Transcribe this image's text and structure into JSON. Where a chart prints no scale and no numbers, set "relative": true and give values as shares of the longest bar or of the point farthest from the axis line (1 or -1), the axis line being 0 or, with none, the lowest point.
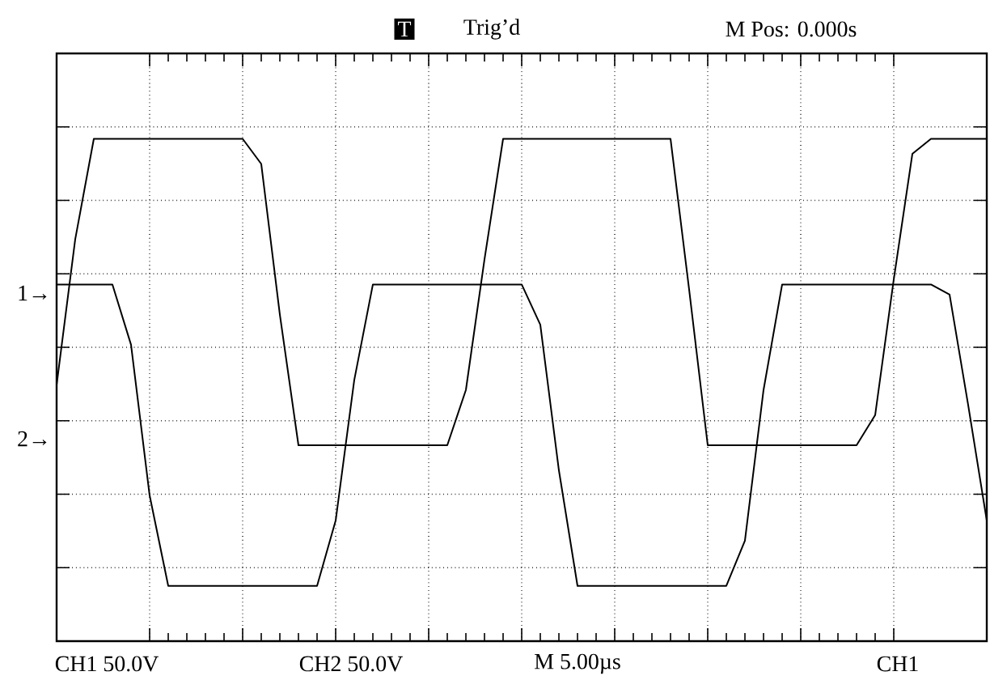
{
  "chart_data": {
    "type": "line",
    "relative": true,
    "annotations": [
      "Trig’d",
      "M Pos: 0.000s",
      "CH1  50.0V",
      "CH2  50.0V",
      "M 5.00µs",
      "CH1",
      "1→",
      "2→",
      "T"
    ],
    "categories": [
      null,
      null,
      null,
      null,
      null,
      null,
      null,
      null,
      null,
      null,
      null,
      null,
      null,
      null,
      null,
      null,
      null,
      null,
      null,
      null,
      null,
      null,
      null,
      null,
      null,
      null,
      null,
      null,
      null,
      null,
      null,
      null,
      null,
      null,
      null,
      null,
      null,
      null,
      null,
      null,
      null,
      null,
      null,
      null,
      null,
      null,
      null,
      null,
      null,
      null,
      null
    ],
    "grid": true,
    "marker": "none",
    "line_style": "solid",
    "series": [
      {
        "color": "#000000",
        "values": [
          0.71,
          0.71,
          0.71,
          0.71,
          0.59,
          0.29,
          0.11,
          0.11,
          0.11,
          0.11,
          0.11,
          0.11,
          0.11,
          0.11,
          0.11,
          0.24,
          0.52,
          0.71,
          0.71,
          0.71,
          0.71,
          0.71,
          0.71,
          0.71,
          0.71,
          0.71,
          0.63,
          0.34,
          0.11,
          0.11,
          0.11,
          0.11,
          0.11,
          0.11,
          0.11,
          0.11,
          0.11,
          0.2,
          0.5,
          0.71,
          0.71,
          0.71,
          0.71,
          0.71,
          0.71,
          0.71,
          0.71,
          0.71,
          0.69,
          0.47,
          0.24
        ]
      },
      {
        "color": "#000000",
        "values": [
          0.51,
          0.8,
          1,
          1,
          1,
          1,
          1,
          1,
          1,
          1,
          1,
          0.95,
          0.65,
          0.39,
          0.39,
          0.39,
          0.39,
          0.39,
          0.39,
          0.39,
          0.39,
          0.39,
          0.5,
          0.76,
          1,
          1,
          1,
          1,
          1,
          1,
          1,
          1,
          1,
          1,
          0.7,
          0.39,
          0.39,
          0.39,
          0.39,
          0.39,
          0.39,
          0.39,
          0.39,
          0.39,
          0.45,
          0.72,
          0.97,
          1,
          1,
          1,
          1
        ]
      }
    ]
  }
}
